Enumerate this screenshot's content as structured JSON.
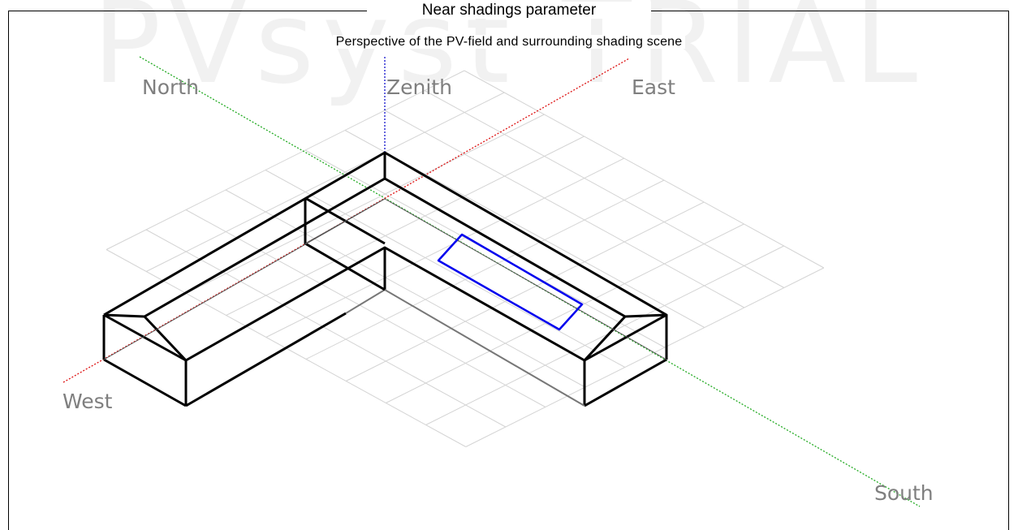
{
  "window": {
    "title": "Near shadings parameter",
    "watermark": "PVsyst TRIAL"
  },
  "scene": {
    "subtitle": "Perspective of the PV-field and surrounding shading scene",
    "directions": {
      "north": "North",
      "zenith": "Zenith",
      "east": "East",
      "west": "West",
      "south": "South"
    },
    "colors": {
      "grid": "#d4d4d4",
      "north_south_axis": "#22aa22",
      "east_west_axis": "#dd1111",
      "zenith_axis": "#1111cc",
      "building": "#000000",
      "pv_field": "#0000ee",
      "label": "#7f7f7f"
    }
  }
}
